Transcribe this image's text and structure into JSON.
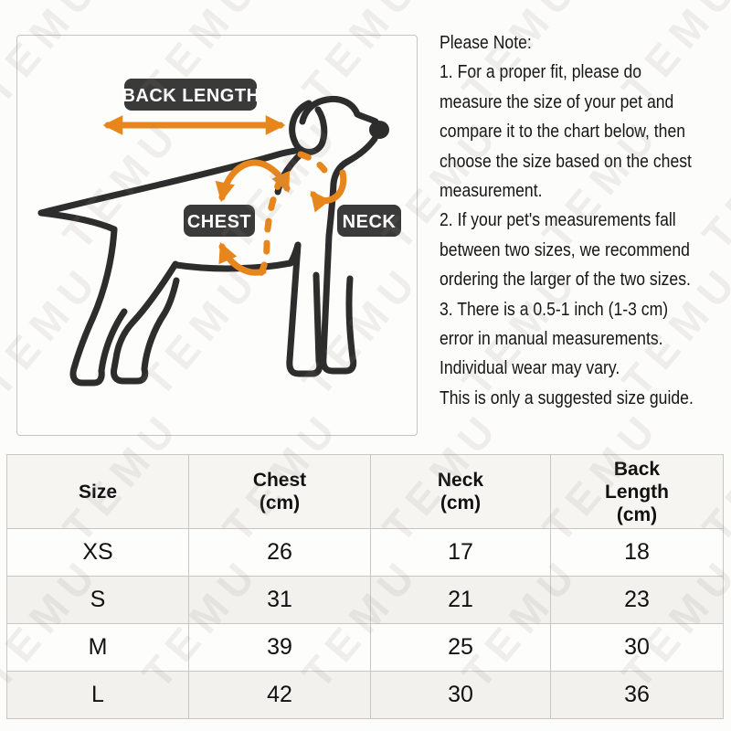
{
  "watermark": {
    "text": "TEMU"
  },
  "diagram": {
    "labels": {
      "back_length": "BACK LENGTH",
      "chest": "CHEST",
      "neck": "NECK"
    },
    "colors": {
      "arrow_orange": "#E8861E",
      "label_bg": "#3A3A3A",
      "label_text": "#FFFFFF",
      "dog_line": "#2D2D2D"
    }
  },
  "notes": {
    "lines": [
      "Please Note:",
      "1. For a proper fit, please do",
      "measure the size of your pet and",
      "compare it to the chart below, then",
      "choose the size based on the chest",
      "measurement.",
      "2. If your pet's measurements fall",
      "between two sizes, we recommend",
      "ordering the larger of the two sizes.",
      "3. There is a 0.5-1 inch (1-3 cm)",
      "error in manual measurements.",
      "Individual wear may vary.",
      "This is only a suggested size guide."
    ]
  },
  "size_table": {
    "headers": {
      "size": [
        "Size"
      ],
      "chest": [
        "Chest",
        "(cm)"
      ],
      "neck": [
        "Neck",
        "(cm)"
      ],
      "back_length": [
        "Back",
        "Length",
        "(cm)"
      ]
    },
    "rows": [
      {
        "size": "XS",
        "chest": "26",
        "neck": "17",
        "back_length": "18"
      },
      {
        "size": "S",
        "chest": "31",
        "neck": "21",
        "back_length": "23"
      },
      {
        "size": "M",
        "chest": "39",
        "neck": "25",
        "back_length": "30"
      },
      {
        "size": "L",
        "chest": "42",
        "neck": "30",
        "back_length": "36"
      }
    ]
  },
  "chart_data": {
    "type": "table",
    "columns": [
      "Size",
      "Chest (cm)",
      "Neck (cm)",
      "Back Length (cm)"
    ],
    "rows": [
      [
        "XS",
        26,
        17,
        18
      ],
      [
        "S",
        31,
        21,
        23
      ],
      [
        "M",
        39,
        25,
        30
      ],
      [
        "L",
        42,
        30,
        36
      ]
    ]
  }
}
